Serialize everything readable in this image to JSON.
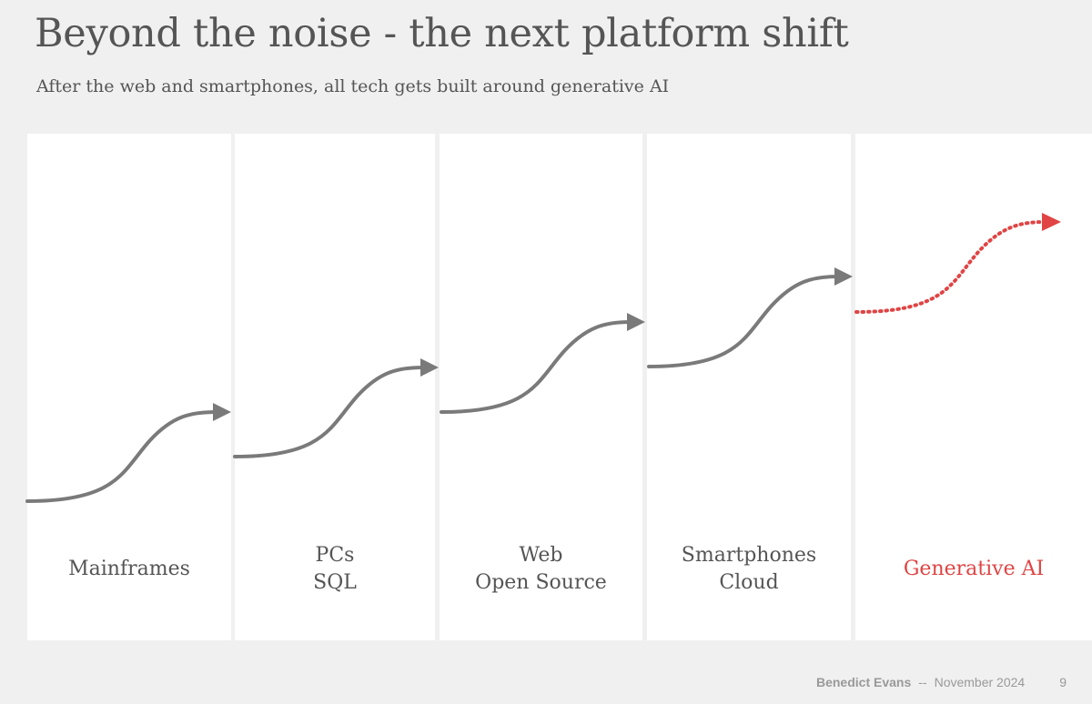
{
  "slide": {
    "title": "Beyond the noise - the next platform shift",
    "subtitle": "After the web and smartphones, all tech gets built around generative AI"
  },
  "eras": [
    {
      "lines": [
        "Mainframes"
      ],
      "highlight": false
    },
    {
      "lines": [
        "PCs",
        "SQL"
      ],
      "highlight": false
    },
    {
      "lines": [
        "Web",
        "Open Source"
      ],
      "highlight": false
    },
    {
      "lines": [
        "Smartphones",
        "Cloud"
      ],
      "highlight": false
    },
    {
      "lines": [
        "Generative AI"
      ],
      "highlight": true
    }
  ],
  "footer": {
    "author": "Benedict Evans",
    "separator": "--",
    "date": "November 2024",
    "page_number": "9"
  },
  "colors": {
    "background": "#f0f0f0",
    "panel": "#ffffff",
    "text": "#555555",
    "curve": "#7a7a7a",
    "accent": "#e04444",
    "footer_text": "#999999"
  },
  "icons": {
    "era_arrow": "s-curve-arrow-icon",
    "future_arrow": "dotted-s-curve-arrow-icon"
  }
}
